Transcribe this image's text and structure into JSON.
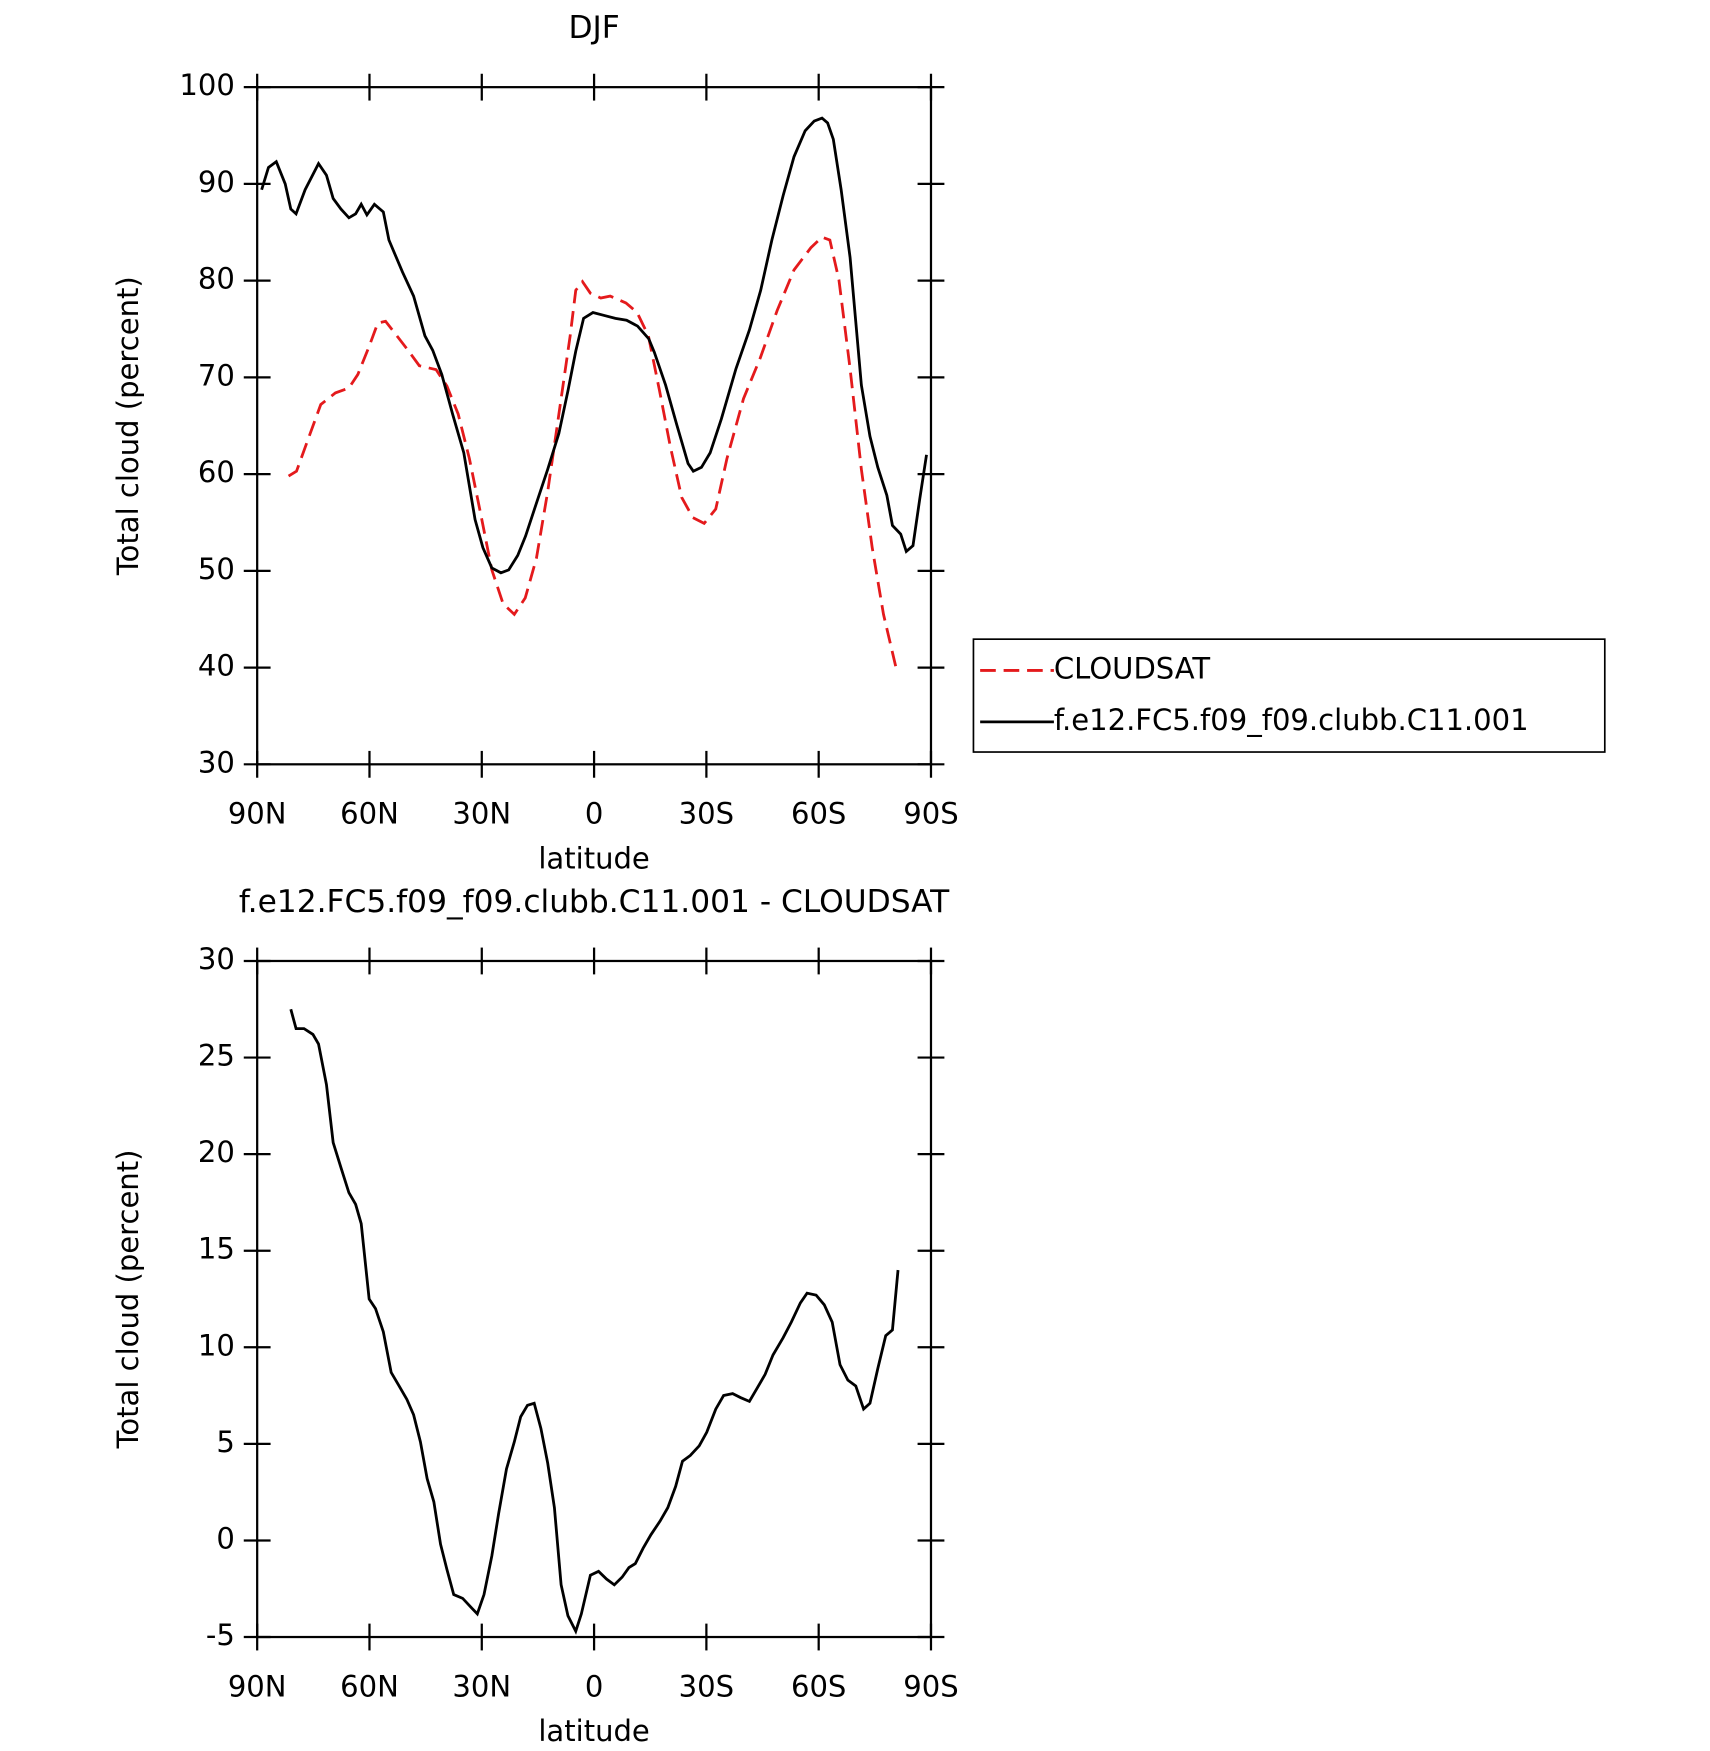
{
  "chart_data": [
    {
      "type": "line",
      "title": "DJF",
      "xlabel": "latitude",
      "ylabel": "Total cloud (percent)",
      "xlim": [
        90,
        -90
      ],
      "xticks": [
        {
          "value": 90,
          "label": "90N"
        },
        {
          "value": 60,
          "label": "60N"
        },
        {
          "value": 30,
          "label": "30N"
        },
        0,
        {
          "value": -30,
          "label": "30S"
        },
        {
          "value": -60,
          "label": "60S"
        },
        {
          "value": -90,
          "label": "90S"
        }
      ],
      "ylim": [
        30,
        100
      ],
      "yticks": [
        30,
        40,
        50,
        60,
        70,
        80,
        90,
        100
      ],
      "legend": "right",
      "series": [
        {
          "name": "CLOUDSAT",
          "color": "#e41a1c",
          "dash": true,
          "x": [
            81.6,
            79.5,
            76.6,
            73,
            69.1,
            65.5,
            63.1,
            60.1,
            57.8,
            55.7,
            52.7,
            49.7,
            46.7,
            42.2,
            39.3,
            36.3,
            33.3,
            30.3,
            27.3,
            24.3,
            21.3,
            18.4,
            15.4,
            12.4,
            9.4,
            6.4,
            4.9,
            3.1,
            1,
            -1.8,
            -4.3,
            -8.5,
            -11.5,
            -14.5,
            -17.5,
            -20.4,
            -23.4,
            -26.4,
            -29.4,
            -32.5,
            -35.5,
            -39.9,
            -44.4,
            -48.9,
            -53.4,
            -57.9,
            -60.9,
            -63,
            -65.4,
            -68.4,
            -71.4,
            -74.3,
            -77.3,
            -80.9
          ],
          "values": [
            59.8,
            60.3,
            63.4,
            67.2,
            68.4,
            68.9,
            70.3,
            73.2,
            75.6,
            75.8,
            74.3,
            72.8,
            71.2,
            70.8,
            69.1,
            66.2,
            61.6,
            55.9,
            50.1,
            46.6,
            45.5,
            47.2,
            51.3,
            58.2,
            66.2,
            74.3,
            79,
            79.9,
            78.7,
            78.2,
            78.4,
            77.7,
            76.7,
            74.3,
            68.6,
            62.8,
            57.6,
            55.5,
            54.9,
            56.4,
            61.6,
            67.8,
            72,
            76.9,
            81.1,
            83.4,
            84.5,
            84.2,
            80.1,
            70.9,
            60.5,
            52.4,
            45.5,
            39.6
          ]
        },
        {
          "name": "f.e12.FC5.f09_f09.clubb.C11.001",
          "color": "#000000",
          "dash": false,
          "x": [
            88.8,
            87,
            84.9,
            82.5,
            81,
            79.6,
            77.2,
            73.6,
            71.5,
            69.7,
            67.6,
            65.5,
            63.7,
            62.2,
            60.7,
            58.7,
            56.3,
            54.8,
            51.2,
            48.2,
            45.2,
            43.1,
            40.7,
            37.8,
            34.8,
            31.8,
            29.7,
            27.3,
            24.9,
            22.8,
            20.4,
            18.3,
            15.4,
            12.4,
            9.4,
            7,
            4.9,
            2.8,
            0.3,
            -2.7,
            -5.7,
            -8.7,
            -11.6,
            -14.6,
            -16.1,
            -19.1,
            -22.1,
            -25.1,
            -26.5,
            -28.7,
            -31,
            -34,
            -37.9,
            -41.5,
            -44.5,
            -47.5,
            -50.5,
            -53.4,
            -56.4,
            -58.8,
            -60.9,
            -62.4,
            -63.9,
            -66,
            -68.4,
            -71.4,
            -73.7,
            -75.8,
            -78.2,
            -79.7,
            -81.9,
            -83.4,
            -85.2,
            -87,
            -88.8
          ],
          "values": [
            89.4,
            91.7,
            92.3,
            90,
            87.4,
            86.9,
            89.4,
            92.1,
            90.9,
            88.5,
            87.4,
            86.5,
            86.9,
            87.9,
            86.8,
            87.9,
            87.1,
            84.2,
            80.9,
            78.4,
            74.3,
            72.8,
            70.3,
            66.2,
            62.2,
            55.3,
            52.4,
            50.3,
            49.8,
            50.1,
            51.6,
            53.6,
            57,
            60.5,
            64.2,
            68.6,
            72.7,
            76.1,
            76.7,
            76.4,
            76.1,
            75.9,
            75.3,
            74,
            72.6,
            69.2,
            65.1,
            61.1,
            60.3,
            60.7,
            62.2,
            65.7,
            70.9,
            74.9,
            79,
            84.2,
            88.8,
            92.8,
            95.5,
            96.5,
            96.8,
            96.3,
            94.6,
            89.4,
            82.4,
            69.2,
            63.9,
            60.7,
            57.8,
            54.7,
            53.8,
            52,
            52.6,
            57.4,
            62
          ]
        }
      ]
    },
    {
      "type": "line",
      "title": "f.e12.FC5.f09_f09.clubb.C11.001 - CLOUDSAT",
      "xlabel": "latitude",
      "ylabel": "Total cloud (percent)",
      "xlim": [
        90,
        -90
      ],
      "xticks": [
        {
          "value": 90,
          "label": "90N"
        },
        {
          "value": 60,
          "label": "60N"
        },
        {
          "value": 30,
          "label": "30N"
        },
        0,
        {
          "value": -30,
          "label": "30S"
        },
        {
          "value": -60,
          "label": "60S"
        },
        {
          "value": -90,
          "label": "90S"
        }
      ],
      "ylim": [
        -5,
        30
      ],
      "yticks": [
        -5,
        0,
        5,
        10,
        15,
        20,
        25,
        30
      ],
      "series": [
        {
          "color": "#000000",
          "dash": false,
          "x": [
            81,
            79.6,
            77.5,
            75.1,
            73.6,
            71.5,
            69.7,
            67.6,
            65.5,
            63.7,
            62.2,
            60.1,
            58.4,
            56.3,
            54.2,
            52.1,
            50,
            48.2,
            46.4,
            44.6,
            42.8,
            41,
            39.3,
            37.5,
            35.1,
            32.7,
            31.2,
            29.4,
            27.3,
            25.5,
            23.4,
            21.3,
            19.6,
            17.8,
            16,
            14.2,
            12.4,
            10.6,
            8.8,
            7,
            4.9,
            3.4,
            1,
            -1.2,
            -3.3,
            -5.4,
            -7.5,
            -9.3,
            -11,
            -13.1,
            -15.2,
            -17.6,
            -19.7,
            -21.8,
            -23.6,
            -25.7,
            -28.1,
            -30.1,
            -32.5,
            -34.6,
            -37,
            -39.1,
            -41.5,
            -43.6,
            -45.7,
            -47.8,
            -50.5,
            -52.7,
            -55.1,
            -56.9,
            -59.3,
            -61.5,
            -63.6,
            -65.7,
            -67.8,
            -69.9,
            -72,
            -73.7,
            -75.8,
            -77.9,
            -79.7,
            -81.2
          ],
          "values": [
            27.5,
            26.5,
            26.5,
            26.2,
            25.7,
            23.6,
            20.6,
            19.3,
            18,
            17.4,
            16.4,
            12.5,
            12,
            10.8,
            8.7,
            8,
            7.3,
            6.5,
            5.1,
            3.2,
            2,
            -0.2,
            -1.5,
            -2.8,
            -3,
            -3.5,
            -3.8,
            -2.8,
            -0.8,
            1.4,
            3.7,
            5.1,
            6.4,
            7,
            7.1,
            5.8,
            4,
            1.7,
            -2.3,
            -3.9,
            -4.7,
            -3.8,
            -1.8,
            -1.6,
            -2,
            -2.3,
            -1.9,
            -1.4,
            -1.2,
            -0.4,
            0.3,
            1,
            1.7,
            2.8,
            4.1,
            4.4,
            4.9,
            5.6,
            6.8,
            7.5,
            7.6,
            7.4,
            7.2,
            7.9,
            8.6,
            9.6,
            10.5,
            11.3,
            12.3,
            12.8,
            12.7,
            12.2,
            11.3,
            9.1,
            8.3,
            8,
            6.8,
            7.1,
            8.9,
            10.6,
            10.9,
            14
          ]
        }
      ]
    }
  ]
}
